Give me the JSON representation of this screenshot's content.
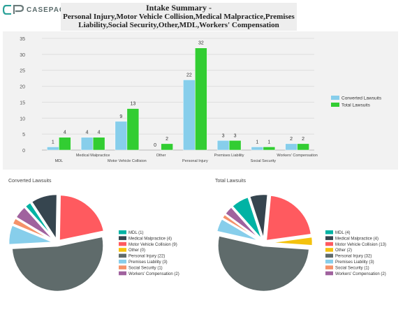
{
  "brand": {
    "name": "CASEPACER"
  },
  "header": {
    "title": "Intake Summary -",
    "subtitle": "Personal Injury,Motor Vehicle Collision,Medical Malpractice,Premises Liability,Social Security,Other,MDL,Workers' Compensation"
  },
  "chart_data": [
    {
      "type": "bar",
      "categories": [
        "MDL",
        "Medical Malpractice",
        "Motor Vehicle Collision",
        "Other",
        "Personal Injury",
        "Premises Liability",
        "Social Security",
        "Workers' Compensation"
      ],
      "series": [
        {
          "name": "Converted Lawsuits",
          "color": "#87ceeb",
          "values": [
            1,
            4,
            9,
            0,
            22,
            3,
            1,
            2
          ]
        },
        {
          "name": "Total Lawsuits",
          "color": "#32cd32",
          "values": [
            4,
            4,
            13,
            2,
            32,
            3,
            1,
            2
          ]
        }
      ],
      "ylim": [
        0,
        35
      ],
      "yticks": [
        0,
        5,
        10,
        15,
        20,
        25,
        30,
        35
      ],
      "grid": true,
      "legend": "right"
    },
    {
      "type": "pie",
      "title": "Converted Lawsuits",
      "labels": [
        "MDL (1)",
        "Medical Malpractice (4)",
        "Motor Vehicle Collision (9)",
        "Other (0)",
        "Personal Injury (22)",
        "Premises Liability (3)",
        "Social Security (1)",
        "Workers' Compensation (2)"
      ],
      "values": [
        1,
        4,
        9,
        0,
        22,
        3,
        1,
        2
      ],
      "colors": [
        "#00b3a4",
        "#36454f",
        "#ff5a5f",
        "#f4c20d",
        "#5f6b6b",
        "#87ceeb",
        "#f5926a",
        "#a0629e"
      ],
      "legend": "right"
    },
    {
      "type": "pie",
      "title": "Total Lawsuits",
      "labels": [
        "MDL (4)",
        "Medical Malpractice (4)",
        "Motor Vehicle Collision (13)",
        "Other (2)",
        "Personal Injury (32)",
        "Premises Liability (3)",
        "Social Security (1)",
        "Workers' Compensation (2)"
      ],
      "values": [
        4,
        4,
        13,
        2,
        32,
        3,
        1,
        2
      ],
      "colors": [
        "#00b3a4",
        "#36454f",
        "#ff5a5f",
        "#f4c20d",
        "#5f6b6b",
        "#87ceeb",
        "#f5926a",
        "#a0629e"
      ],
      "legend": "right"
    }
  ]
}
